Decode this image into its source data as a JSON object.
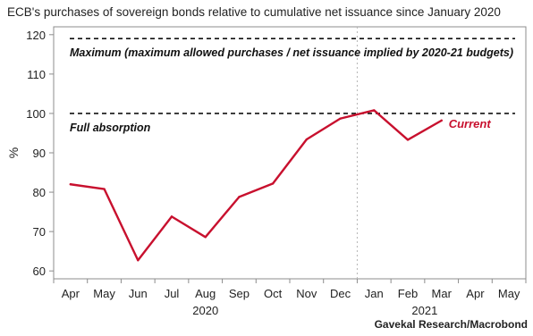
{
  "chart_data": {
    "type": "line",
    "title": "ECB's purchases of sovereign bonds relative to cumulative net issuance since January 2020",
    "ylabel": "%",
    "xlabel": "",
    "categories": [
      "Apr",
      "May",
      "Jun",
      "Jul",
      "Aug",
      "Sep",
      "Oct",
      "Nov",
      "Dec",
      "Jan",
      "Feb",
      "Mar",
      "Apr",
      "May"
    ],
    "year_labels": [
      {
        "label": "2020",
        "index": 4
      },
      {
        "label": "2021",
        "index": 10.5
      }
    ],
    "year_divider_after_index": 8,
    "ylim": [
      58,
      122
    ],
    "yticks": [
      60,
      70,
      80,
      90,
      100,
      110,
      120
    ],
    "series": [
      {
        "name": "Current",
        "color": "#c8102e",
        "values": [
          82.0,
          80.8,
          62.7,
          73.8,
          68.6,
          78.8,
          82.2,
          93.4,
          98.7,
          100.8,
          93.3,
          98.2,
          null,
          null
        ]
      }
    ],
    "reference_lines": [
      {
        "value": 119,
        "label": "Maximum (maximum allowed purchases / net issuance implied by 2020-21 budgets)"
      },
      {
        "value": 100,
        "label": "Full absorption"
      }
    ],
    "grid": false,
    "legend": "inline"
  },
  "source": "Gavekal Research/Macrobond"
}
